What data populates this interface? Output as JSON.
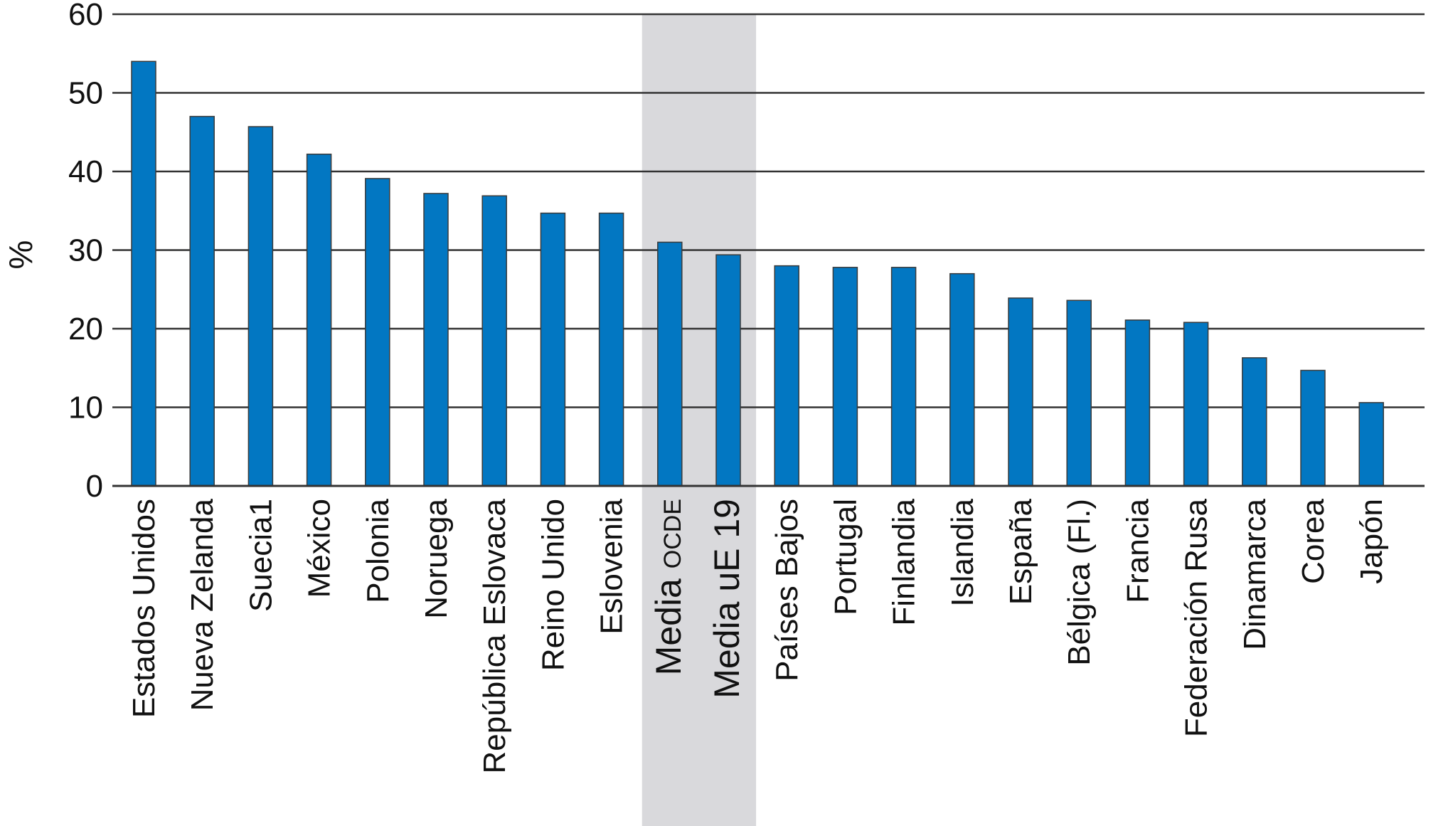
{
  "chart_data": {
    "type": "bar",
    "ylabel": "%",
    "ylim": [
      0,
      60
    ],
    "yticks": [
      0,
      10,
      20,
      30,
      40,
      50,
      60
    ],
    "grid": true,
    "bar_color": "#0277c2",
    "highlight_color": "#d9d9dc",
    "highlighted_categories": [
      "Media OCDE",
      "Media uE 19"
    ],
    "categories": [
      "Estados Unidos",
      "Nueva Zelanda",
      "Suecia1",
      "México",
      "Polonia",
      "Noruega",
      "República Eslovaca",
      "Reino Unido",
      "Eslovenia",
      "Media OCDE",
      "Media uE 19",
      "Países Bajos",
      "Portugal",
      "Finlandia",
      "Islandia",
      "España",
      "Bélgica (Fl.)",
      "Francia",
      "Federación Rusa",
      "Dinamarca",
      "Corea",
      "Japón"
    ],
    "values": [
      54,
      47,
      45.7,
      42.2,
      39.1,
      37.2,
      36.9,
      34.7,
      34.7,
      31,
      29.4,
      28,
      27.8,
      27.8,
      27,
      23.9,
      23.6,
      21.1,
      20.8,
      16.3,
      14.7,
      10.6
    ]
  }
}
